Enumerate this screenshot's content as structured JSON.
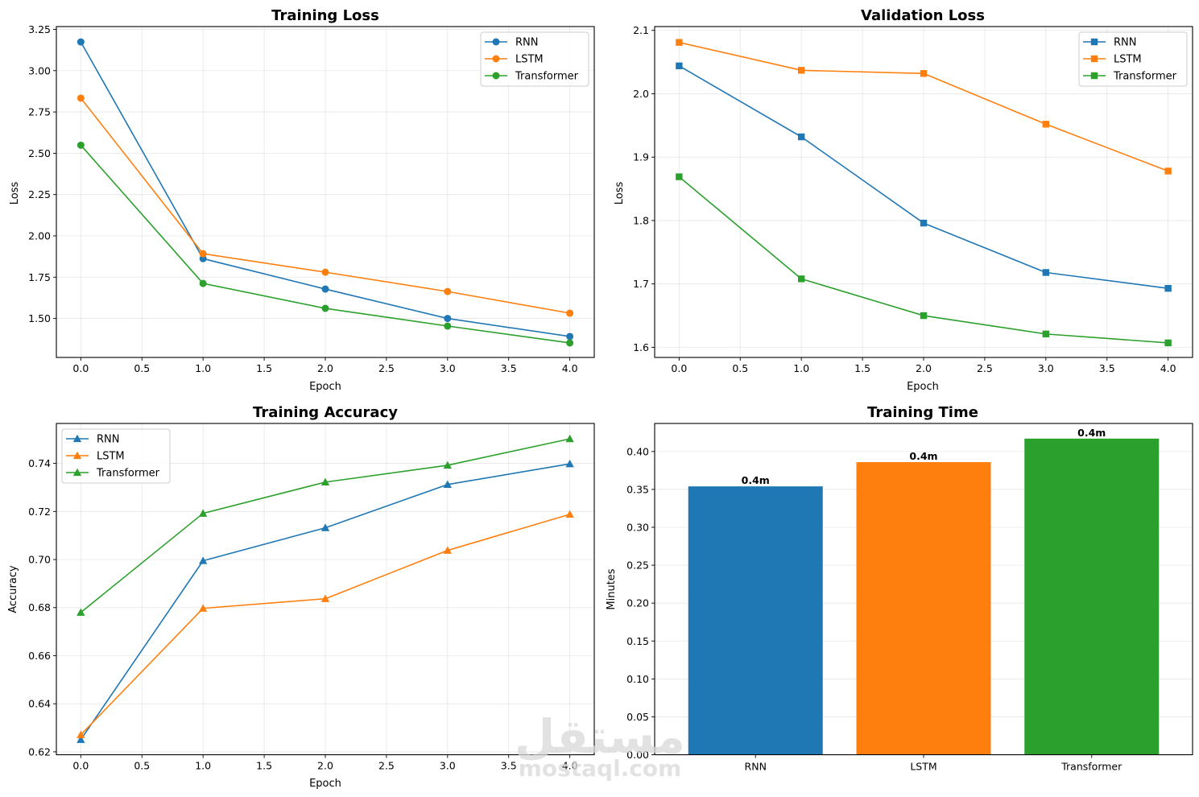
{
  "chart_data": [
    {
      "id": "training_loss",
      "type": "line",
      "title": "Training Loss",
      "xlabel": "Epoch",
      "ylabel": "Loss",
      "x": [
        0,
        1,
        2,
        3,
        4
      ],
      "xlim": [
        -0.2,
        4.2
      ],
      "ylim": [
        1.264,
        3.267
      ],
      "xticks": [
        0.0,
        0.5,
        1.0,
        1.5,
        2.0,
        2.5,
        3.0,
        3.5,
        4.0
      ],
      "xtick_labels": [
        "0.0",
        "0.5",
        "1.0",
        "1.5",
        "2.0",
        "2.5",
        "3.0",
        "3.5",
        "4.0"
      ],
      "yticks": [
        1.5,
        1.75,
        2.0,
        2.25,
        2.5,
        2.75,
        3.0,
        3.25
      ],
      "ytick_labels": [
        "1.50",
        "1.75",
        "2.00",
        "2.25",
        "2.50",
        "2.75",
        "3.00",
        "3.25"
      ],
      "marker": "circle",
      "grid": true,
      "legend_position": "upper-right",
      "series": [
        {
          "name": "RNN",
          "color": "#1f77b4",
          "values": [
            3.174,
            1.862,
            1.678,
            1.5,
            1.391
          ]
        },
        {
          "name": "LSTM",
          "color": "#ff7f0e",
          "values": [
            2.834,
            1.892,
            1.78,
            1.663,
            1.532
          ]
        },
        {
          "name": "Transformer",
          "color": "#2ca02c",
          "values": [
            2.549,
            1.712,
            1.561,
            1.454,
            1.352
          ]
        }
      ]
    },
    {
      "id": "validation_loss",
      "type": "line",
      "title": "Validation Loss",
      "xlabel": "Epoch",
      "ylabel": "Loss",
      "x": [
        0,
        1,
        2,
        3,
        4
      ],
      "xlim": [
        -0.2,
        4.2
      ],
      "ylim": [
        1.584,
        2.106
      ],
      "xticks": [
        0.0,
        0.5,
        1.0,
        1.5,
        2.0,
        2.5,
        3.0,
        3.5,
        4.0
      ],
      "xtick_labels": [
        "0.0",
        "0.5",
        "1.0",
        "1.5",
        "2.0",
        "2.5",
        "3.0",
        "3.5",
        "4.0"
      ],
      "yticks": [
        1.6,
        1.7,
        1.8,
        1.9,
        2.0,
        2.1
      ],
      "ytick_labels": [
        "1.6",
        "1.7",
        "1.8",
        "1.9",
        "2.0",
        "2.1"
      ],
      "marker": "square",
      "grid": true,
      "legend_position": "upper-right",
      "series": [
        {
          "name": "RNN",
          "color": "#1f77b4",
          "values": [
            2.044,
            1.932,
            1.796,
            1.718,
            1.693
          ]
        },
        {
          "name": "LSTM",
          "color": "#ff7f0e",
          "values": [
            2.081,
            2.037,
            2.032,
            1.952,
            1.878
          ]
        },
        {
          "name": "Transformer",
          "color": "#2ca02c",
          "values": [
            1.869,
            1.708,
            1.65,
            1.621,
            1.607
          ]
        }
      ]
    },
    {
      "id": "training_accuracy",
      "type": "line",
      "title": "Training Accuracy",
      "xlabel": "Epoch",
      "ylabel": "Accuracy",
      "x": [
        0,
        1,
        2,
        3,
        4
      ],
      "xlim": [
        -0.2,
        4.2
      ],
      "ylim": [
        0.6188,
        0.7566
      ],
      "xticks": [
        0.0,
        0.5,
        1.0,
        1.5,
        2.0,
        2.5,
        3.0,
        3.5,
        4.0
      ],
      "xtick_labels": [
        "0.0",
        "0.5",
        "1.0",
        "1.5",
        "2.0",
        "2.5",
        "3.0",
        "3.5",
        "4.0"
      ],
      "yticks": [
        0.62,
        0.64,
        0.66,
        0.68,
        0.7,
        0.72,
        0.74
      ],
      "ytick_labels": [
        "0.62",
        "0.64",
        "0.66",
        "0.68",
        "0.70",
        "0.72",
        "0.74"
      ],
      "marker": "triangle",
      "grid": true,
      "legend_position": "upper-left",
      "series": [
        {
          "name": "RNN",
          "color": "#1f77b4",
          "values": [
            0.6251,
            0.6995,
            0.7132,
            0.7312,
            0.7398
          ]
        },
        {
          "name": "LSTM",
          "color": "#ff7f0e",
          "values": [
            0.6271,
            0.6797,
            0.6837,
            0.7038,
            0.7188
          ]
        },
        {
          "name": "Transformer",
          "color": "#2ca02c",
          "values": [
            0.678,
            0.7192,
            0.7322,
            0.7392,
            0.7502
          ]
        }
      ]
    },
    {
      "id": "training_time",
      "type": "bar",
      "title": "Training Time",
      "xlabel": "",
      "ylabel": "Minutes",
      "categories": [
        "RNN",
        "LSTM",
        "Transformer"
      ],
      "values": [
        0.354,
        0.386,
        0.417
      ],
      "colors": [
        "#1f77b4",
        "#ff7f0e",
        "#2ca02c"
      ],
      "data_labels": [
        "0.4m",
        "0.4m",
        "0.4m"
      ],
      "ylim": [
        0,
        0.437
      ],
      "yticks": [
        0.0,
        0.05,
        0.1,
        0.15,
        0.2,
        0.25,
        0.3,
        0.35,
        0.4
      ],
      "ytick_labels": [
        "0.00",
        "0.05",
        "0.10",
        "0.15",
        "0.20",
        "0.25",
        "0.30",
        "0.35",
        "0.40"
      ],
      "grid": true,
      "grid_axis": "y"
    }
  ],
  "watermark": {
    "arabic": "مستقل",
    "latin": "mostaql.com"
  }
}
